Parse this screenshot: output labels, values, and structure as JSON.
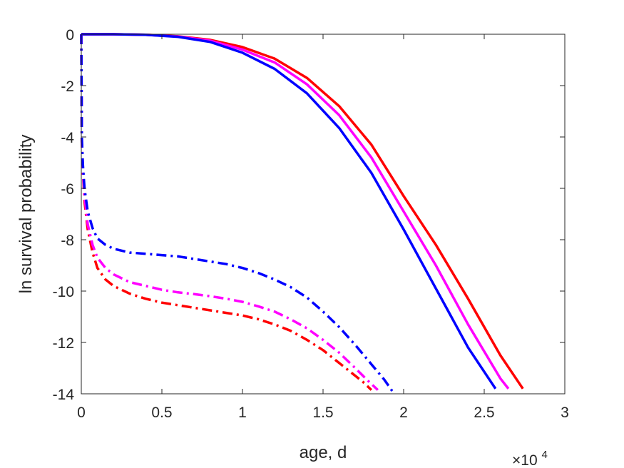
{
  "chart_data": {
    "type": "line",
    "title": "",
    "xlabel": "age, d",
    "ylabel": "ln survival probability",
    "x_multiplier_base": "×10",
    "x_multiplier_exponent": "4",
    "xlim": [
      0,
      30000
    ],
    "ylim": [
      -14,
      0
    ],
    "x_ticks": [
      0,
      5000,
      10000,
      15000,
      20000,
      25000,
      30000
    ],
    "x_tick_labels": [
      "0",
      "0.5",
      "1",
      "1.5",
      "2",
      "2.5",
      "3"
    ],
    "y_ticks": [
      0,
      -2,
      -4,
      -6,
      -8,
      -10,
      -12,
      -14
    ],
    "y_tick_labels": [
      "0",
      "-2",
      "-4",
      "-6",
      "-8",
      "-10",
      "-12",
      "-14"
    ],
    "grid": false,
    "legend": "none",
    "series": [
      {
        "style": "solid",
        "color": "#ff0000",
        "x": [
          0,
          2000,
          4000,
          6000,
          8000,
          10000,
          12000,
          14000,
          16000,
          18000,
          20000,
          22000,
          24000,
          26000,
          27400
        ],
        "y": [
          0,
          0,
          -0.02,
          -0.08,
          -0.22,
          -0.5,
          -0.95,
          -1.7,
          -2.8,
          -4.3,
          -6.3,
          -8.2,
          -10.3,
          -12.5,
          -13.8
        ]
      },
      {
        "style": "solid",
        "color": "#ff00ff",
        "x": [
          0,
          2000,
          4000,
          6000,
          8000,
          10000,
          12000,
          14000,
          16000,
          18000,
          20000,
          22000,
          24000,
          26000,
          26500
        ],
        "y": [
          0,
          0,
          -0.02,
          -0.09,
          -0.25,
          -0.6,
          -1.1,
          -1.95,
          -3.15,
          -4.8,
          -6.9,
          -9.0,
          -11.3,
          -13.4,
          -13.8
        ]
      },
      {
        "style": "solid",
        "color": "#0000ff",
        "x": [
          0,
          2000,
          4000,
          6000,
          8000,
          10000,
          12000,
          14000,
          16000,
          18000,
          20000,
          22000,
          24000,
          25700
        ],
        "y": [
          0,
          0,
          -0.02,
          -0.1,
          -0.3,
          -0.72,
          -1.35,
          -2.3,
          -3.65,
          -5.4,
          -7.6,
          -9.9,
          -12.2,
          -13.8
        ]
      },
      {
        "style": "dashdot",
        "color": "#ff0000",
        "x": [
          0,
          30,
          100,
          200,
          400,
          700,
          1000,
          1500,
          2000,
          3000,
          4000,
          5000,
          6000,
          7000,
          8000,
          9000,
          10000,
          11000,
          12000,
          13000,
          14000,
          15000,
          16000,
          17000,
          17500,
          18000
        ],
        "y": [
          0,
          -4.2,
          -5.4,
          -6.5,
          -7.6,
          -8.5,
          -9.1,
          -9.55,
          -9.8,
          -10.1,
          -10.3,
          -10.45,
          -10.55,
          -10.65,
          -10.75,
          -10.85,
          -10.95,
          -11.1,
          -11.3,
          -11.55,
          -11.9,
          -12.3,
          -12.8,
          -13.3,
          -13.55,
          -13.85
        ]
      },
      {
        "style": "dashdot",
        "color": "#ff00ff",
        "x": [
          0,
          30,
          100,
          200,
          400,
          700,
          1000,
          1500,
          2000,
          3000,
          4000,
          5000,
          6000,
          7000,
          8000,
          9000,
          10000,
          11000,
          12000,
          13000,
          14000,
          15000,
          16000,
          17000,
          17800,
          18400
        ],
        "y": [
          0,
          -4.2,
          -5.3,
          -6.3,
          -7.4,
          -8.2,
          -8.7,
          -9.1,
          -9.35,
          -9.65,
          -9.8,
          -9.95,
          -10.05,
          -10.12,
          -10.2,
          -10.3,
          -10.42,
          -10.6,
          -10.8,
          -11.1,
          -11.45,
          -11.9,
          -12.4,
          -13.0,
          -13.5,
          -13.85
        ]
      },
      {
        "style": "dashdot",
        "color": "#0000ff",
        "x": [
          0,
          30,
          100,
          200,
          400,
          700,
          1000,
          1500,
          2000,
          3000,
          4000,
          5000,
          6000,
          7000,
          8000,
          9000,
          10000,
          11000,
          12000,
          13000,
          14000,
          15000,
          16000,
          17000,
          18000,
          18800,
          19300
        ],
        "y": [
          0,
          -4.0,
          -5.1,
          -6.0,
          -6.9,
          -7.55,
          -7.95,
          -8.2,
          -8.35,
          -8.5,
          -8.55,
          -8.6,
          -8.65,
          -8.75,
          -8.85,
          -8.95,
          -9.1,
          -9.3,
          -9.55,
          -9.85,
          -10.25,
          -10.8,
          -11.4,
          -12.1,
          -12.85,
          -13.45,
          -13.9
        ]
      }
    ]
  }
}
